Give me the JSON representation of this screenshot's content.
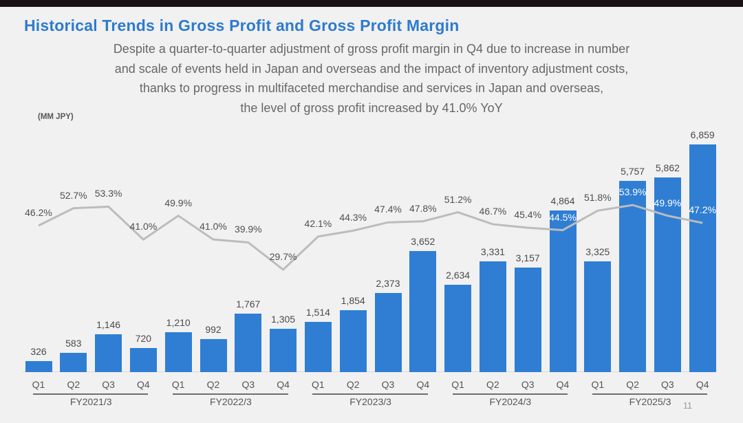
{
  "slide": {
    "title": "Historical Trends in Gross Profit and Gross Profit Margin",
    "subtitle_lines": [
      "Despite a quarter-to-quarter adjustment of gross profit margin in Q4 due to increase in number",
      "and scale of events held in Japan and overseas and the impact of inventory adjustment costs,",
      "thanks to progress in multifaceted merchandise and services in Japan and overseas,",
      "the level of gross profit increased by 41.0% YoY"
    ],
    "unit_label": "(MM JPY)",
    "page_number": "11"
  },
  "colors": {
    "background": "#f1f1f1",
    "top_bar": "#191114",
    "title": "#2e7bcd",
    "subtitle_text": "#676767",
    "bar": "#2f7ed3",
    "line": "#bcbcbc",
    "label_text": "#4a4a4a",
    "pct_label_on_bar": "#ffffff",
    "axis_line": "#d9d9d9",
    "underline": "#6e6e6e",
    "page_number": "#979797"
  },
  "chart_data": {
    "type": "bar",
    "title": "Historical Trends in Gross Profit and Gross Profit Margin",
    "unit": "MM JPY",
    "grid": false,
    "legend": "none",
    "group_labels": [
      "FY2021/3",
      "FY2022/3",
      "FY2023/3",
      "FY2024/3",
      "FY2025/3"
    ],
    "quarter_labels": [
      "Q1",
      "Q2",
      "Q3",
      "Q4"
    ],
    "series": [
      {
        "name": "Gross Profit (MM JPY)",
        "type": "bar",
        "values": [
          326,
          583,
          1146,
          720,
          1210,
          992,
          1767,
          1305,
          1514,
          1854,
          2373,
          3652,
          2634,
          3331,
          3157,
          4864,
          3325,
          5757,
          5862,
          6859
        ]
      },
      {
        "name": "Gross Profit Margin (%)",
        "type": "line",
        "values": [
          46.2,
          52.7,
          53.3,
          41.0,
          49.9,
          41.0,
          39.9,
          29.7,
          42.1,
          44.3,
          47.4,
          47.8,
          51.2,
          46.7,
          45.4,
          44.5,
          51.8,
          53.9,
          49.9,
          47.2
        ]
      }
    ],
    "white_pct_label_indices": [
      15,
      17,
      18,
      19
    ]
  }
}
